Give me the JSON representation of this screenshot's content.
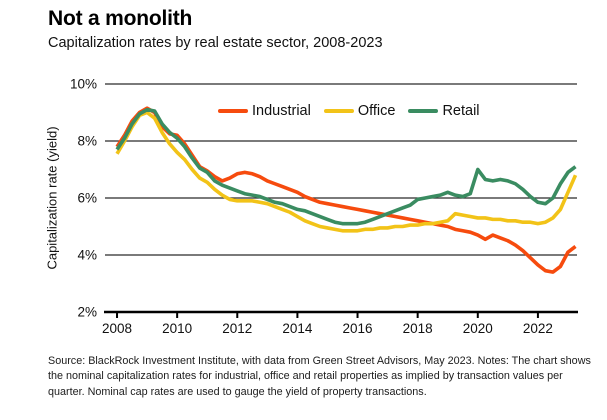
{
  "header": {
    "title": "Not a monolith",
    "subtitle": "Capitalization rates by real estate sector, 2008-2023"
  },
  "chart_data": {
    "type": "line",
    "title": "Not a monolith",
    "subtitle": "Capitalization rates by real estate sector, 2008-2023",
    "ylabel": "Capitalization rate (yield)",
    "xlabel": "",
    "frequency": "quarterly",
    "x_start": 2008.0,
    "x_step_years": 0.25,
    "xlim": [
      2007.6,
      2023.3
    ],
    "ylim": [
      2,
      10
    ],
    "grid": "horizontal",
    "legend_position": "top-inside",
    "x_ticks": [
      {
        "value": 2008,
        "label": "2008"
      },
      {
        "value": 2010,
        "label": "2010"
      },
      {
        "value": 2012,
        "label": "2012"
      },
      {
        "value": 2014,
        "label": "2014"
      },
      {
        "value": 2016,
        "label": "2016"
      },
      {
        "value": 2018,
        "label": "2018"
      },
      {
        "value": 2020,
        "label": "2020"
      },
      {
        "value": 2022,
        "label": "2022"
      }
    ],
    "y_ticks": [
      {
        "value": 2,
        "label": "2%"
      },
      {
        "value": 4,
        "label": "4%"
      },
      {
        "value": 6,
        "label": "6%"
      },
      {
        "value": 8,
        "label": "8%"
      },
      {
        "value": 10,
        "label": "10%"
      }
    ],
    "series": [
      {
        "name": "Industrial",
        "color": "#F64B0E",
        "values": [
          7.8,
          8.2,
          8.7,
          9.0,
          9.15,
          9.0,
          8.5,
          8.25,
          8.2,
          7.9,
          7.5,
          7.1,
          6.95,
          6.75,
          6.6,
          6.7,
          6.85,
          6.9,
          6.85,
          6.75,
          6.6,
          6.5,
          6.4,
          6.3,
          6.2,
          6.05,
          5.95,
          5.85,
          5.8,
          5.75,
          5.7,
          5.65,
          5.6,
          5.55,
          5.5,
          5.45,
          5.4,
          5.35,
          5.3,
          5.25,
          5.2,
          5.15,
          5.1,
          5.05,
          5.0,
          4.9,
          4.85,
          4.8,
          4.7,
          4.55,
          4.7,
          4.6,
          4.5,
          4.35,
          4.15,
          3.9,
          3.65,
          3.45,
          3.4,
          3.6,
          4.1,
          4.3
        ]
      },
      {
        "name": "Office",
        "color": "#F2C318",
        "values": [
          7.55,
          8.0,
          8.5,
          8.9,
          9.0,
          8.8,
          8.3,
          7.9,
          7.6,
          7.35,
          7.0,
          6.7,
          6.55,
          6.3,
          6.1,
          5.95,
          5.9,
          5.9,
          5.9,
          5.85,
          5.8,
          5.7,
          5.6,
          5.5,
          5.35,
          5.2,
          5.1,
          5.0,
          4.95,
          4.9,
          4.85,
          4.85,
          4.85,
          4.9,
          4.9,
          4.95,
          4.95,
          5.0,
          5.0,
          5.05,
          5.05,
          5.1,
          5.1,
          5.15,
          5.2,
          5.45,
          5.4,
          5.35,
          5.3,
          5.3,
          5.25,
          5.25,
          5.2,
          5.2,
          5.15,
          5.15,
          5.1,
          5.15,
          5.3,
          5.6,
          6.2,
          6.8
        ]
      },
      {
        "name": "Retail",
        "color": "#3A8C61",
        "values": [
          7.7,
          8.1,
          8.6,
          8.95,
          9.1,
          9.05,
          8.6,
          8.3,
          8.1,
          7.8,
          7.4,
          7.05,
          6.9,
          6.6,
          6.45,
          6.35,
          6.25,
          6.15,
          6.1,
          6.05,
          5.95,
          5.85,
          5.8,
          5.7,
          5.6,
          5.55,
          5.45,
          5.35,
          5.25,
          5.15,
          5.1,
          5.1,
          5.1,
          5.15,
          5.25,
          5.35,
          5.45,
          5.55,
          5.65,
          5.75,
          5.95,
          6.0,
          6.05,
          6.1,
          6.2,
          6.1,
          6.05,
          6.15,
          7.0,
          6.65,
          6.6,
          6.65,
          6.6,
          6.5,
          6.3,
          6.05,
          5.85,
          5.8,
          6.0,
          6.5,
          6.9,
          7.1
        ]
      }
    ]
  },
  "source_note": "Source: BlackRock Investment Institute, with data from Green Street Advisors, May 2023. Notes: The chart shows the nominal capitalization rates for industrial, office and retail properties as implied by transaction values per quarter. Nominal cap rates are used to gauge the yield of property transactions."
}
